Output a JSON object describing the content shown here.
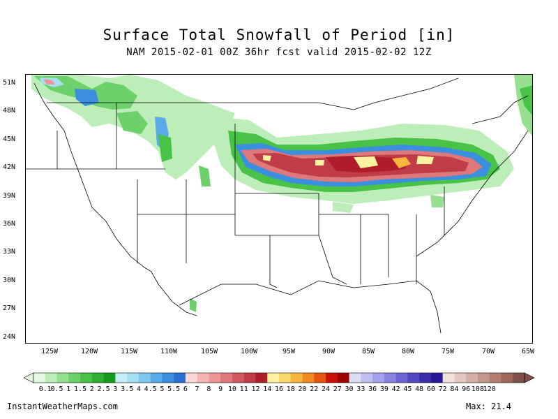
{
  "title": "Surface Total Snowfall of Period [in]",
  "subtitle": "NAM 2015-02-01 00Z 36hr fcst valid 2015-02-02 12Z",
  "lat_labels": [
    "51N",
    "48N",
    "45N",
    "42N",
    "39N",
    "36N",
    "33N",
    "30N",
    "27N",
    "24N"
  ],
  "lon_labels": [
    "125W",
    "120W",
    "115W",
    "110W",
    "105W",
    "100W",
    "95W",
    "90W",
    "85W",
    "80W",
    "75W",
    "70W",
    "65W"
  ],
  "legend": {
    "labels": [
      "0.1",
      "0.5",
      "1",
      "1.5",
      "2",
      "2.5",
      "3",
      "3.5",
      "4",
      "4.5",
      "5",
      "5.5",
      "6",
      "7",
      "8",
      "9",
      "10",
      "11",
      "12",
      "14",
      "16",
      "18",
      "20",
      "22",
      "24",
      "27",
      "30",
      "33",
      "36",
      "39",
      "42",
      "45",
      "48",
      "60",
      "72",
      "84",
      "96",
      "108",
      "120"
    ],
    "colors": [
      "#e4f8e2",
      "#bdedb9",
      "#96e08f",
      "#6dd16b",
      "#48c247",
      "#2fb032",
      "#149a1d",
      "#c6eef6",
      "#a6def2",
      "#80c6ee",
      "#5aaae8",
      "#3c8ede",
      "#2a70cf",
      "#fcd7d5",
      "#f4b6b4",
      "#ec9698",
      "#de787b",
      "#d05a60",
      "#c03c46",
      "#b01d2a",
      "#fcf2a0",
      "#f8d86a",
      "#f6b640",
      "#f08a22",
      "#e45610",
      "#c81006",
      "#a00000",
      "#dcdcf4",
      "#c0c0f0",
      "#a4a2ec",
      "#8884e0",
      "#6c66d2",
      "#5048c0",
      "#3a2eac",
      "#281898",
      "#f2e2dc",
      "#e2c8c0",
      "#d4b0a6",
      "#c4968c",
      "#b27e74",
      "#9c685e",
      "#82504a"
    ]
  },
  "footer": {
    "site": "InstantWeatherMaps.com",
    "max": "Max:  21.4"
  }
}
